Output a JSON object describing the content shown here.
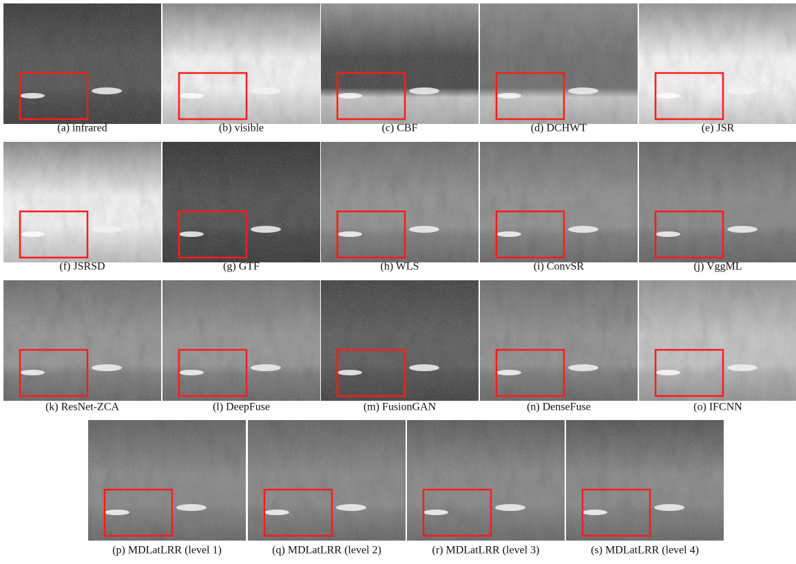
{
  "figure": {
    "panels": [
      {
        "caption": "(a) infrared"
      },
      {
        "caption": "(b) visible"
      },
      {
        "caption": "(c) CBF"
      },
      {
        "caption": "(d) DCHWT"
      },
      {
        "caption": "(e) JSR"
      },
      {
        "caption": "(f) JSRSD"
      },
      {
        "caption": "(g) GTF"
      },
      {
        "caption": "(h) WLS"
      },
      {
        "caption": "(i) ConvSR"
      },
      {
        "caption": "(j) VggML"
      },
      {
        "caption": "(k) ResNet-ZCA"
      },
      {
        "caption": "(l) DeepFuse"
      },
      {
        "caption": "(m) FusionGAN"
      },
      {
        "caption": "(n) DenseFuse"
      },
      {
        "caption": "(o) IFCNN"
      },
      {
        "caption": "(p) MDLatLRR (level 1)"
      },
      {
        "caption": "(q) MDLatLRR (level 2)"
      },
      {
        "caption": "(r) MDLatLRR (level 3)"
      },
      {
        "caption": "(s) MDLatLRR (level 4)"
      }
    ]
  }
}
